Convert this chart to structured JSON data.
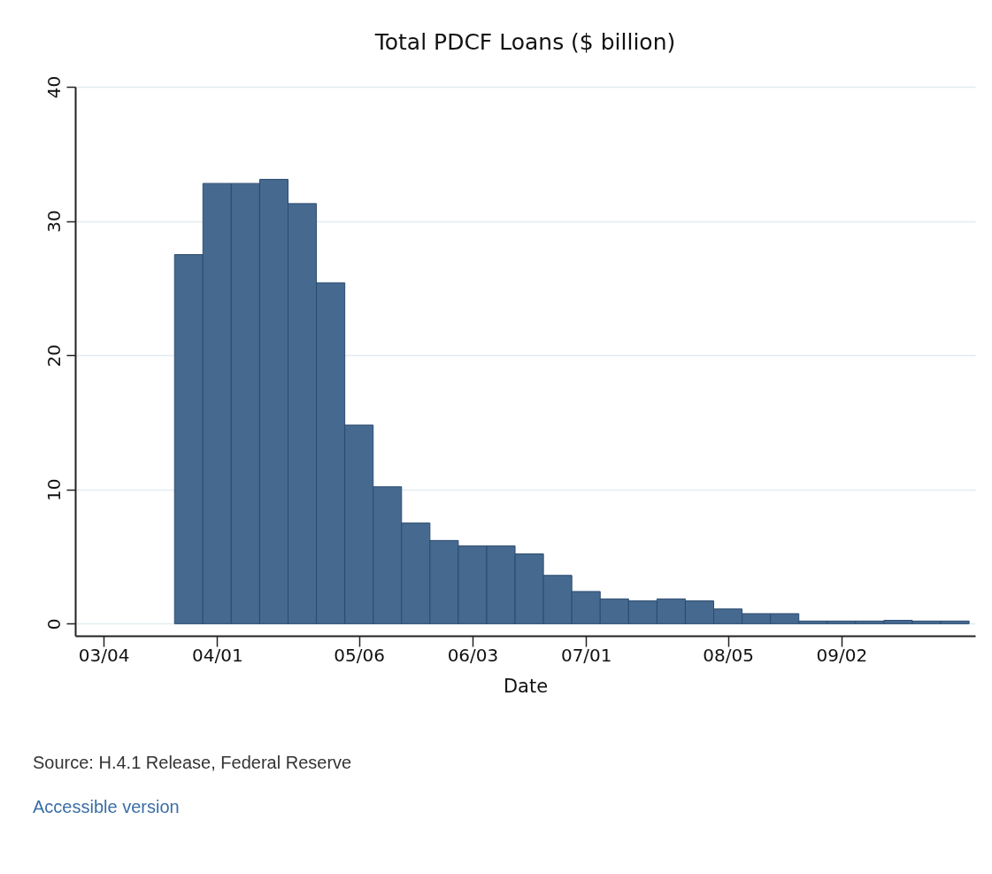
{
  "chart_data": {
    "type": "bar",
    "title": "Total PDCF Loans ($ billion)",
    "xlabel": "Date",
    "x": [
      "--03-25",
      "--04-01",
      "--04-08",
      "--04-15",
      "--04-22",
      "--04-29",
      "--05-06",
      "--05-13",
      "--05-20",
      "--05-27",
      "--06-03",
      "--06-10",
      "--06-17",
      "--06-24",
      "--07-01",
      "--07-08",
      "--07-15",
      "--07-22",
      "--07-29",
      "--08-05",
      "--08-12",
      "--08-19",
      "--08-26",
      "--09-02",
      "--09-09",
      "--09-16",
      "--09-23",
      "--09-30"
    ],
    "values": [
      27.5,
      32.8,
      32.8,
      33.1,
      31.3,
      25.4,
      14.8,
      10.2,
      7.5,
      6.2,
      5.8,
      5.8,
      5.2,
      3.6,
      2.4,
      1.85,
      1.7,
      1.85,
      1.7,
      1.1,
      0.75,
      0.75,
      0.2,
      0.2,
      0.2,
      0.25,
      0.2,
      0.2
    ],
    "color": "#46698f",
    "xlim": [
      "--02-26",
      "--10-05"
    ],
    "xticks": [
      {
        "value": "--03-04",
        "label": "03/04"
      },
      {
        "value": "--04-01",
        "label": "04/01"
      },
      {
        "value": "--05-06",
        "label": "05/06"
      },
      {
        "value": "--06-03",
        "label": "06/03"
      },
      {
        "value": "--07-01",
        "label": "07/01"
      },
      {
        "value": "--08-05",
        "label": "08/05"
      },
      {
        "value": "--09-02",
        "label": "09/02"
      }
    ],
    "ylim": [
      -0.9,
      40
    ],
    "yticks": [
      0,
      10,
      20,
      30,
      40
    ],
    "grid": "y",
    "annotations": [
      "Source: H.4.1 Release, Federal Reserve",
      "Accessible version"
    ]
  }
}
